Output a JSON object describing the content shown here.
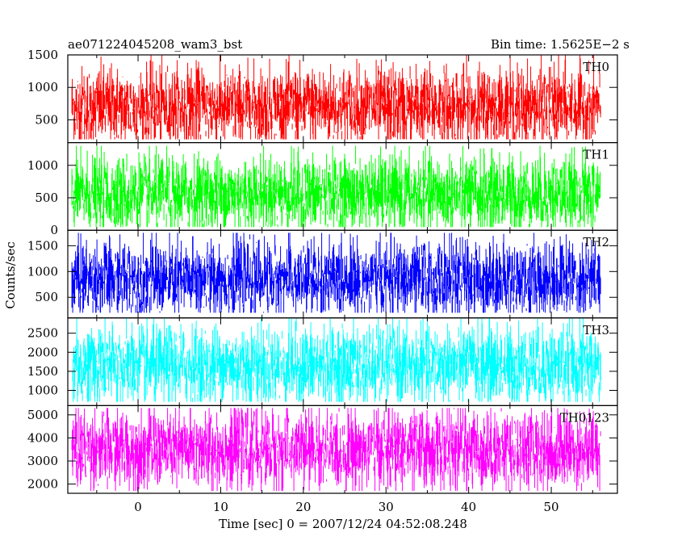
{
  "chart_data": {
    "type": "line",
    "title_left": "ae071224045208_wam3_bst",
    "title_right": "Bin time: 1.5625E−2 s",
    "xlabel": "Time [sec] 0 = 2007/12/24 04:52:08.248",
    "ylabel": "Counts/sec",
    "xlim": [
      -8.5,
      58
    ],
    "data_range": [
      -8,
      56
    ],
    "xticks": [
      0,
      10,
      20,
      30,
      40,
      50
    ],
    "xtick_labels": [
      "0",
      "10",
      "20",
      "30",
      "40",
      "50"
    ],
    "panels": [
      {
        "name": "TH0",
        "color": "#ff0000",
        "ylim": [
          150,
          1500
        ],
        "yticks": [
          500,
          1000,
          1500
        ],
        "ytick_labels": [
          "500",
          "1000",
          "1500"
        ],
        "approx_level": 700,
        "approx_range": [
          200,
          1500
        ]
      },
      {
        "name": "TH1",
        "color": "#00ff00",
        "ylim": [
          0,
          1350
        ],
        "yticks": [
          0,
          500,
          1000
        ],
        "ytick_labels": [
          "0",
          "500",
          "1000"
        ],
        "approx_level": 550,
        "approx_range": [
          50,
          1300
        ]
      },
      {
        "name": "TH2",
        "color": "#0000ff",
        "ylim": [
          100,
          1800
        ],
        "yticks": [
          500,
          1000,
          1500
        ],
        "ytick_labels": [
          "500",
          "1000",
          "1500"
        ],
        "approx_level": 850,
        "approx_range": [
          200,
          1750
        ]
      },
      {
        "name": "TH3",
        "color": "#00ffff",
        "ylim": [
          600,
          2900
        ],
        "yticks": [
          1000,
          1500,
          2000,
          2500
        ],
        "ytick_labels": [
          "1000",
          "1500",
          "2000",
          "2500"
        ],
        "approx_level": 1650,
        "approx_range": [
          700,
          2900
        ]
      },
      {
        "name": "TH0123",
        "color": "#ff00ff",
        "ylim": [
          1600,
          5400
        ],
        "yticks": [
          2000,
          3000,
          4000,
          5000
        ],
        "ytick_labels": [
          "2000",
          "3000",
          "4000",
          "5000"
        ],
        "approx_level": 3500,
        "approx_range": [
          1700,
          5300
        ]
      }
    ],
    "grid": false
  }
}
